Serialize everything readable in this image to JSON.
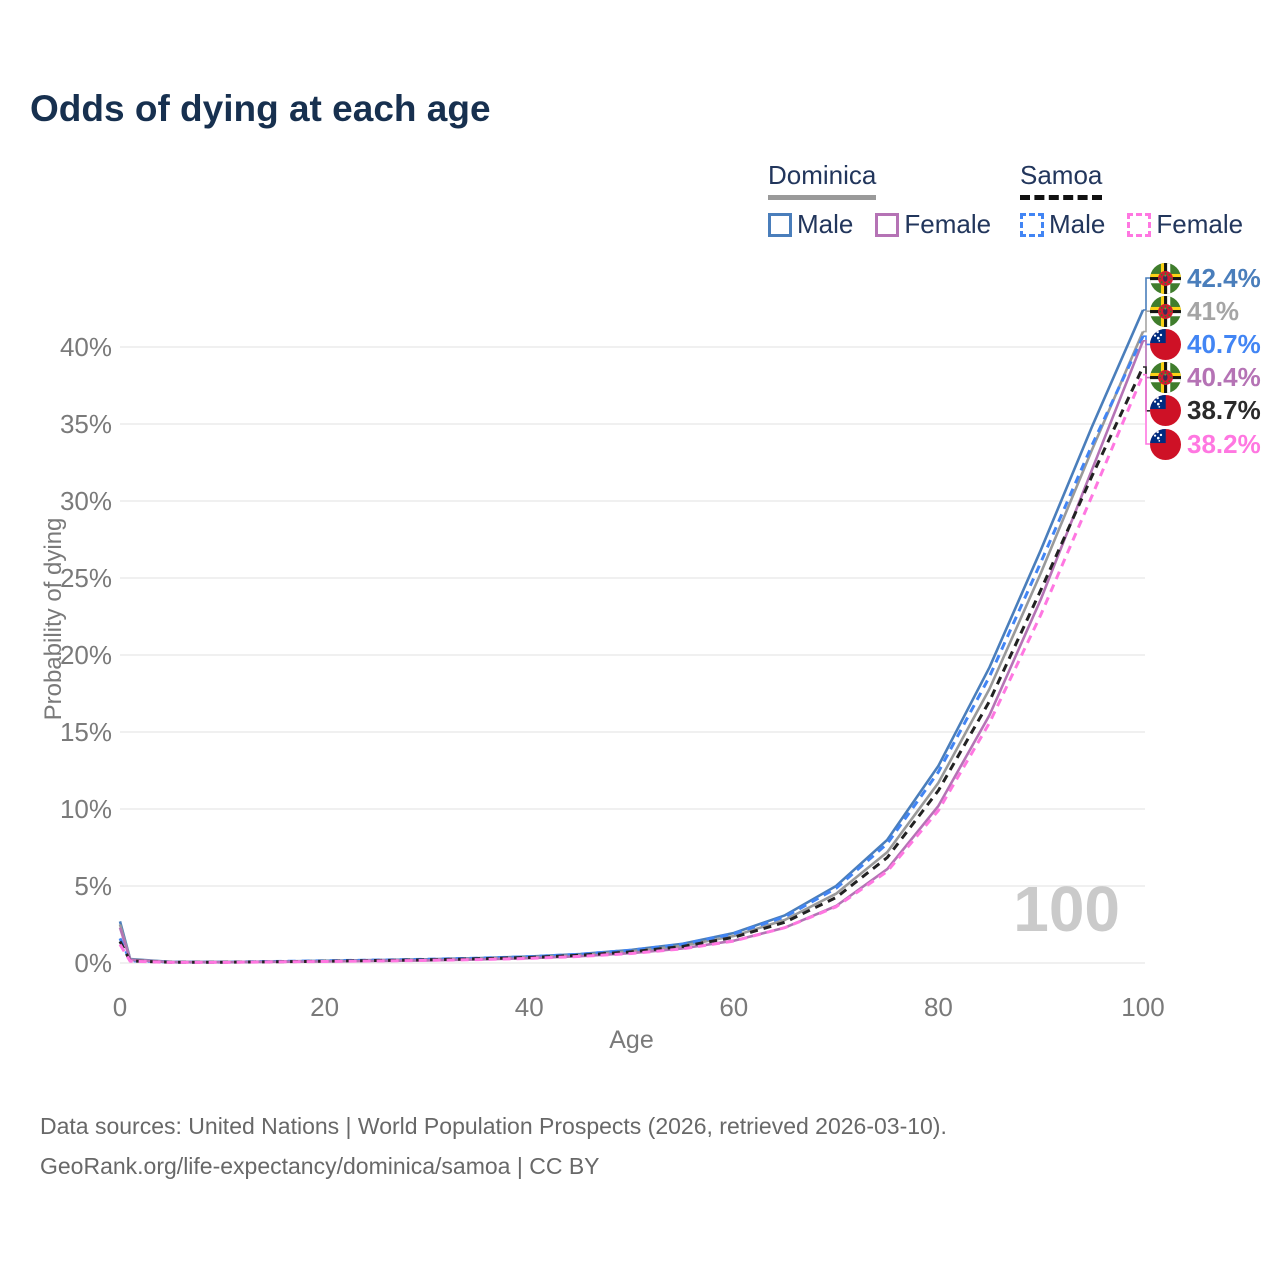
{
  "title": "Odds of dying at each age",
  "watermark": "100",
  "footer": {
    "line1": "Data sources: United Nations | World Population Prospects (2026, retrieved 2026-03-10).",
    "line2": "GeoRank.org/life-expectancy/dominica/samoa | CC BY"
  },
  "legend": {
    "dominica": {
      "label": "Dominica",
      "male_label": "Male",
      "female_label": "Female"
    },
    "samoa": {
      "label": "Samoa",
      "male_label": "Male",
      "female_label": "Female"
    }
  },
  "colors": {
    "dominica_male": "#4a7ebb",
    "dominica_all": "#9a9a9a",
    "dominica_female": "#b573b5",
    "samoa_male": "#4285f4",
    "samoa_all": "#222222",
    "samoa_female": "#ff77e1",
    "grid": "#ebebeb",
    "tick_text": "#7a7a7a",
    "title_text": "#17304f"
  },
  "chart_data": {
    "type": "line",
    "title": "Odds of dying at each age",
    "xlabel": "Age",
    "ylabel": "Probability of dying",
    "x_ticks": [
      0,
      20,
      40,
      60,
      80,
      100
    ],
    "y_ticks": [
      "0%",
      "5%",
      "10%",
      "15%",
      "20%",
      "25%",
      "30%",
      "35%",
      "40%"
    ],
    "xlim": [
      0,
      100
    ],
    "ylim_pct": [
      0,
      40
    ],
    "grid": true,
    "legend_position": "top-right",
    "ages": [
      0,
      1,
      5,
      10,
      15,
      20,
      25,
      30,
      35,
      40,
      45,
      50,
      55,
      60,
      65,
      70,
      75,
      80,
      85,
      90,
      95,
      100
    ],
    "series": [
      {
        "name": "Dominica Male",
        "flag": "dominica",
        "dashed": false,
        "color": "#4a7ebb",
        "end_label": "42.4%",
        "end_color": "#4a7ebb",
        "values": [
          2.7,
          0.25,
          0.07,
          0.07,
          0.1,
          0.14,
          0.19,
          0.24,
          0.31,
          0.42,
          0.58,
          0.85,
          1.25,
          1.95,
          3.1,
          5.0,
          8.0,
          12.8,
          19.2,
          26.8,
          34.8,
          42.4
        ]
      },
      {
        "name": "Dominica",
        "flag": "dominica",
        "dashed": false,
        "color": "#9a9a9a",
        "end_label": "41%",
        "end_color": "#a5a5a5",
        "values": [
          2.5,
          0.22,
          0.06,
          0.06,
          0.09,
          0.12,
          0.16,
          0.21,
          0.28,
          0.37,
          0.52,
          0.76,
          1.12,
          1.75,
          2.8,
          4.5,
          7.2,
          11.7,
          17.8,
          25.3,
          33.3,
          41.0
        ]
      },
      {
        "name": "Samoa Male",
        "flag": "samoa",
        "dashed": true,
        "color": "#4285f4",
        "end_label": "40.7%",
        "end_color": "#4285f4",
        "values": [
          1.6,
          0.15,
          0.06,
          0.06,
          0.1,
          0.14,
          0.19,
          0.24,
          0.31,
          0.41,
          0.57,
          0.83,
          1.22,
          1.9,
          3.0,
          4.85,
          7.75,
          12.4,
          18.6,
          26.0,
          33.6,
          40.7
        ]
      },
      {
        "name": "Dominica Female",
        "flag": "dominica",
        "dashed": false,
        "color": "#b573b5",
        "end_label": "40.4%",
        "end_color": "#b573b5",
        "values": [
          2.3,
          0.2,
          0.05,
          0.05,
          0.08,
          0.1,
          0.13,
          0.17,
          0.23,
          0.31,
          0.44,
          0.64,
          0.95,
          1.45,
          2.3,
          3.7,
          6.1,
          10.2,
          16.1,
          23.6,
          32.0,
          40.4
        ]
      },
      {
        "name": "Samoa",
        "flag": "samoa",
        "dashed": true,
        "color": "#222222",
        "end_label": "38.7%",
        "end_color": "#2a2a2a",
        "values": [
          1.4,
          0.13,
          0.05,
          0.05,
          0.08,
          0.12,
          0.16,
          0.21,
          0.27,
          0.36,
          0.5,
          0.73,
          1.07,
          1.67,
          2.65,
          4.25,
          6.85,
          11.2,
          17.0,
          24.2,
          31.6,
          38.7
        ]
      },
      {
        "name": "Samoa Female",
        "flag": "samoa",
        "dashed": true,
        "color": "#ff77e1",
        "end_label": "38.2%",
        "end_color": "#ff77e1",
        "values": [
          1.2,
          0.12,
          0.04,
          0.04,
          0.07,
          0.1,
          0.13,
          0.17,
          0.22,
          0.3,
          0.43,
          0.62,
          0.92,
          1.42,
          2.3,
          3.65,
          5.95,
          9.9,
          15.6,
          22.6,
          30.3,
          38.2
        ]
      }
    ]
  }
}
